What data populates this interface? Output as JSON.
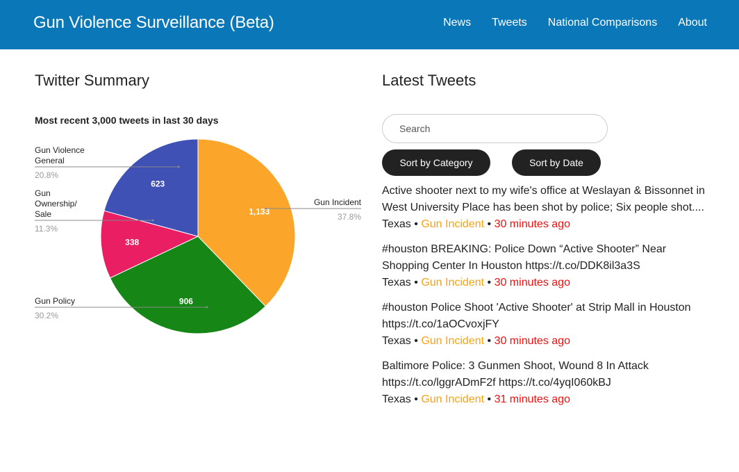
{
  "header": {
    "brand": "Gun Violence Surveillance (Beta)",
    "nav": [
      "News",
      "Tweets",
      "National Comparisons",
      "About"
    ],
    "background_color": "#0a77b8"
  },
  "summary": {
    "title": "Twitter Summary"
  },
  "chart_data": {
    "type": "pie",
    "title": "Most recent 3,000 tweets in last 30 days",
    "slices": [
      {
        "label": "Gun Incident",
        "value": 1133,
        "display": "1,133",
        "percent": "37.8%",
        "color": "#fba52a"
      },
      {
        "label": "Gun Policy",
        "value": 906,
        "display": "906",
        "percent": "30.2%",
        "color": "#168716"
      },
      {
        "label": "Gun Ownership/ Sale",
        "label_lines": [
          "Gun",
          "Ownership/",
          "Sale"
        ],
        "value": 338,
        "display": "338",
        "percent": "11.3%",
        "color": "#e91e63"
      },
      {
        "label": "Gun Violence General",
        "label_lines": [
          "Gun Violence",
          "General"
        ],
        "value": 623,
        "display": "623",
        "percent": "20.8%",
        "color": "#3f51b5"
      }
    ]
  },
  "latest": {
    "title": "Latest Tweets",
    "search_placeholder": "Search",
    "sort_category_label": "Sort by Category",
    "sort_date_label": "Sort by Date",
    "separator": "•",
    "tweets": [
      {
        "text": "Active shooter next to my wife's office at Weslayan & Bissonnet in West University Place has been shot by police; Six people shot....",
        "location": "Texas",
        "category": "Gun Incident",
        "time": "30 minutes ago"
      },
      {
        "text": "#houston BREAKING: Police Down “Active Shooter” Near Shopping Center In Houston https://t.co/DDK8il3a3S",
        "location": "Texas",
        "category": "Gun Incident",
        "time": "30 minutes ago"
      },
      {
        "text": "#houston Police Shoot 'Active Shooter' at Strip Mall in Houston https://t.co/1aOCvoxjFY",
        "location": "Texas",
        "category": "Gun Incident",
        "time": "30 minutes ago"
      },
      {
        "text": "Baltimore Police: 3 Gunmen Shoot, Wound 8 In Attack https://t.co/lggrADmF2f https://t.co/4yqI060kBJ",
        "location": "Texas",
        "category": "Gun Incident",
        "time": "31 minutes ago"
      }
    ]
  }
}
